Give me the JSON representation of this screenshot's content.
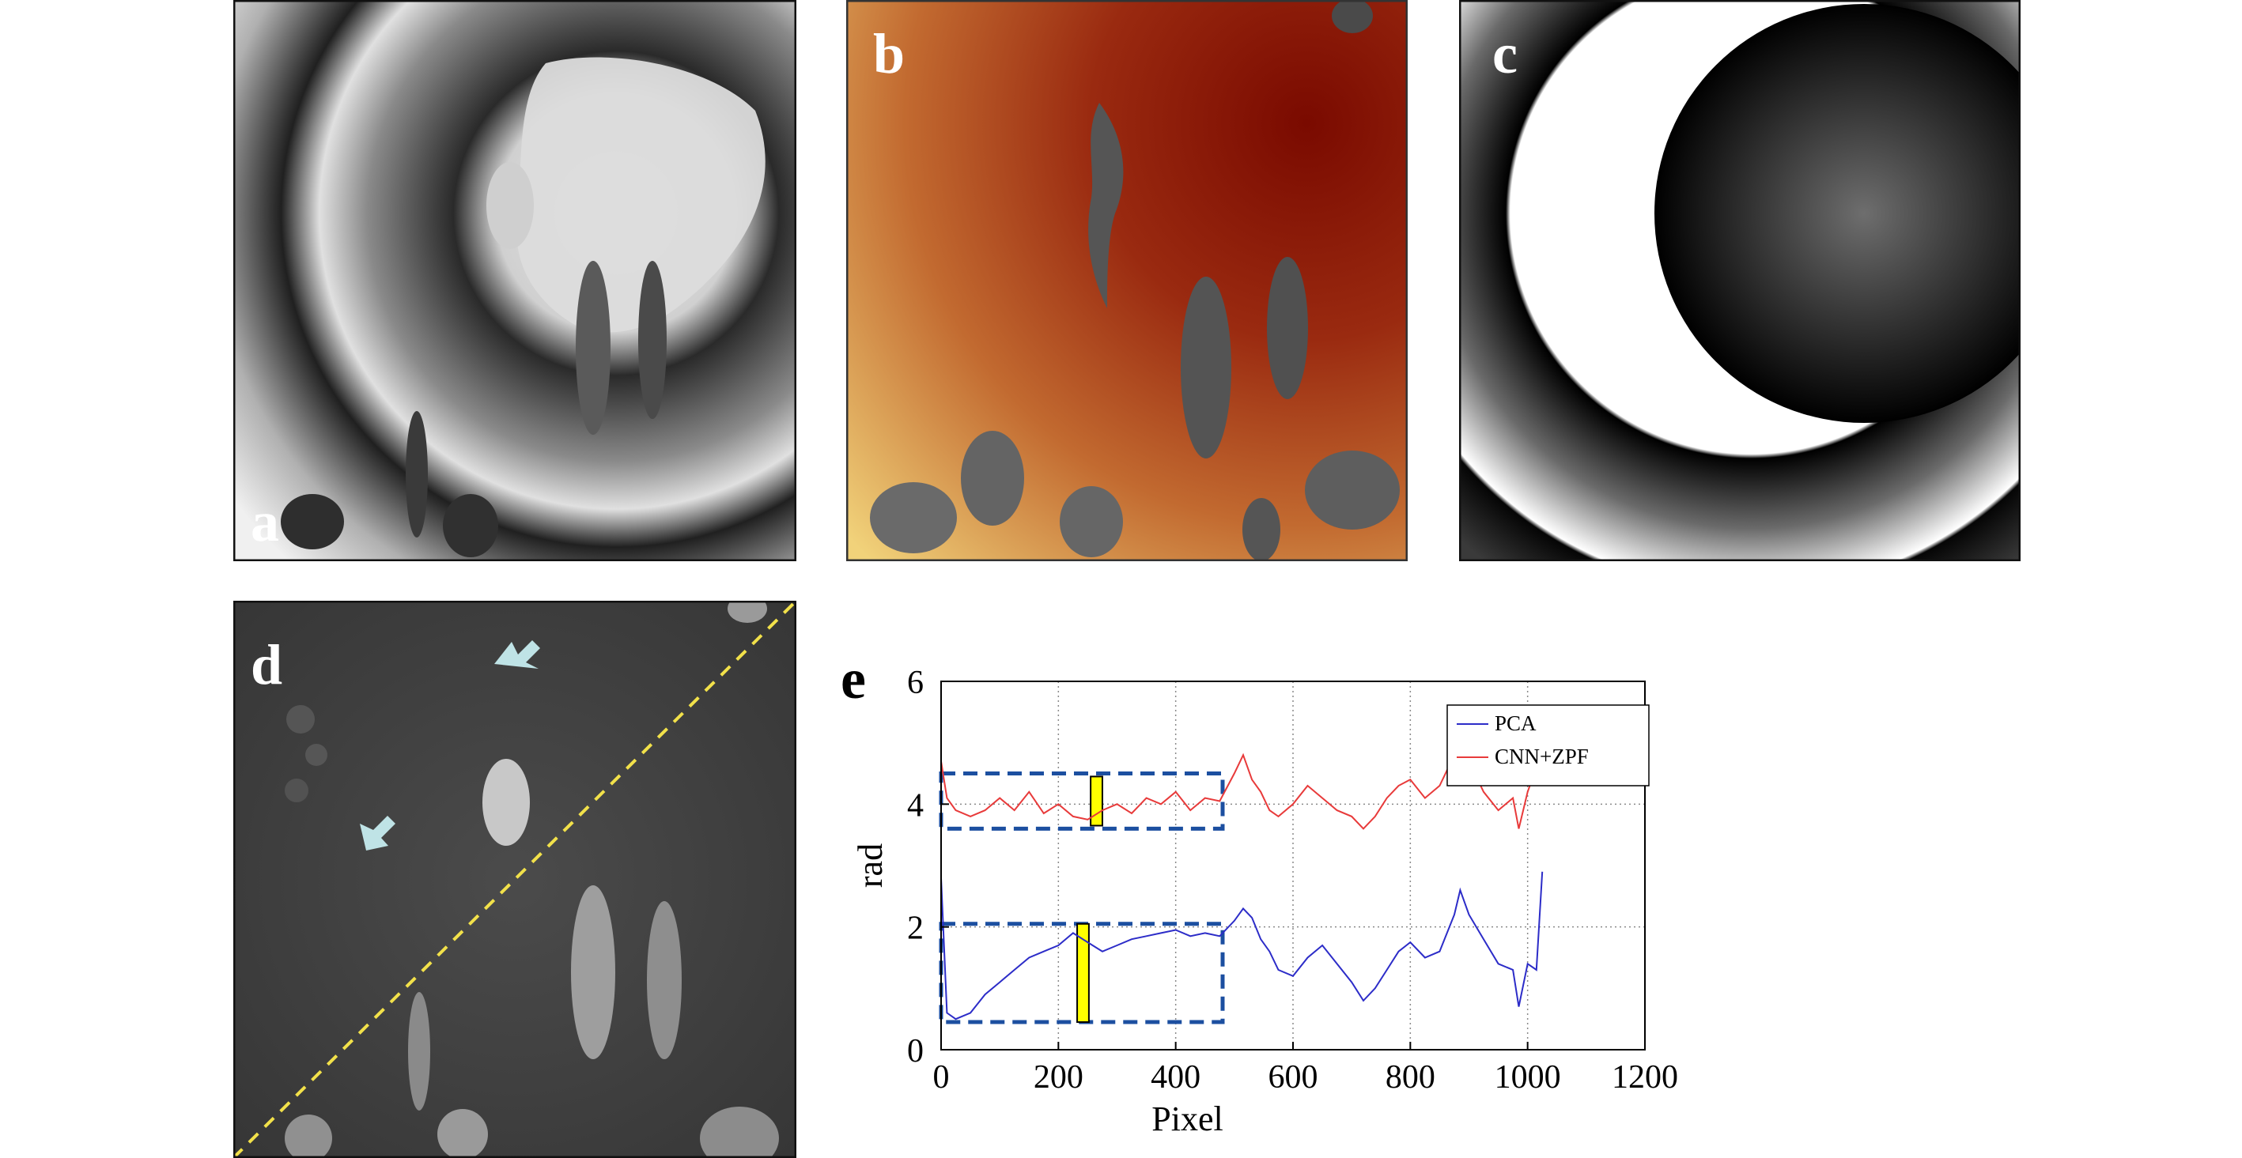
{
  "panels": {
    "a": {
      "label": "a"
    },
    "b": {
      "label": "b"
    },
    "c": {
      "label": "c"
    },
    "d": {
      "label": "d"
    },
    "e": {
      "label": "e"
    }
  },
  "chart_data": {
    "type": "line",
    "title": "",
    "xlabel": "Pixel",
    "ylabel": "rad",
    "xlim": [
      0,
      1200
    ],
    "ylim": [
      0,
      6
    ],
    "xticks": [
      0,
      200,
      400,
      600,
      800,
      1000,
      1200
    ],
    "yticks": [
      0,
      2,
      4,
      6
    ],
    "grid": true,
    "legend_position": "top-right",
    "series": [
      {
        "name": "PCA",
        "color": "#2c2cc8",
        "x": [
          0,
          10,
          25,
          50,
          75,
          100,
          125,
          150,
          175,
          200,
          225,
          250,
          275,
          300,
          325,
          350,
          375,
          400,
          425,
          450,
          475,
          500,
          515,
          530,
          545,
          560,
          575,
          600,
          625,
          650,
          675,
          700,
          720,
          740,
          760,
          780,
          800,
          825,
          850,
          875,
          885,
          900,
          925,
          950,
          975,
          985,
          1000,
          1015,
          1025
        ],
        "y": [
          2.8,
          0.6,
          0.5,
          0.6,
          0.9,
          1.1,
          1.3,
          1.5,
          1.6,
          1.7,
          1.9,
          1.75,
          1.6,
          1.7,
          1.8,
          1.85,
          1.9,
          1.95,
          1.85,
          1.9,
          1.85,
          2.1,
          2.3,
          2.15,
          1.8,
          1.6,
          1.3,
          1.2,
          1.5,
          1.7,
          1.4,
          1.1,
          0.8,
          1.0,
          1.3,
          1.6,
          1.75,
          1.5,
          1.6,
          2.2,
          2.6,
          2.2,
          1.8,
          1.4,
          1.3,
          0.7,
          1.4,
          1.3,
          2.9
        ]
      },
      {
        "name": "CNN+ZPF",
        "color": "#e83a3a",
        "x": [
          0,
          10,
          25,
          50,
          75,
          100,
          125,
          150,
          175,
          200,
          225,
          250,
          275,
          300,
          325,
          350,
          375,
          400,
          425,
          450,
          475,
          500,
          515,
          530,
          545,
          560,
          575,
          600,
          625,
          650,
          675,
          700,
          720,
          740,
          760,
          780,
          800,
          825,
          850,
          875,
          885,
          900,
          925,
          950,
          975,
          985,
          1000,
          1015,
          1025
        ],
        "y": [
          4.7,
          4.1,
          3.9,
          3.8,
          3.9,
          4.1,
          3.9,
          4.2,
          3.85,
          4.0,
          3.8,
          3.75,
          3.9,
          4.0,
          3.85,
          4.1,
          4.0,
          4.2,
          3.9,
          4.1,
          4.05,
          4.5,
          4.8,
          4.4,
          4.2,
          3.9,
          3.8,
          4.0,
          4.3,
          4.1,
          3.9,
          3.8,
          3.6,
          3.8,
          4.1,
          4.3,
          4.4,
          4.1,
          4.3,
          4.8,
          5.1,
          4.7,
          4.2,
          3.9,
          4.1,
          3.6,
          4.2,
          4.6,
          4.3
        ]
      }
    ],
    "annotations": [
      {
        "kind": "dashed-box",
        "x": [
          0,
          480
        ],
        "y": [
          3.6,
          4.5
        ],
        "color": "#1c4fa0"
      },
      {
        "kind": "dashed-box",
        "x": [
          0,
          480
        ],
        "y": [
          0.45,
          2.05
        ],
        "color": "#1c4fa0"
      },
      {
        "kind": "filled-bar",
        "x": [
          255,
          275
        ],
        "y": [
          3.65,
          4.45
        ],
        "color": "#ffff00"
      },
      {
        "kind": "filled-bar",
        "x": [
          232,
          252
        ],
        "y": [
          0.45,
          2.05
        ],
        "color": "#ffff00"
      }
    ]
  }
}
